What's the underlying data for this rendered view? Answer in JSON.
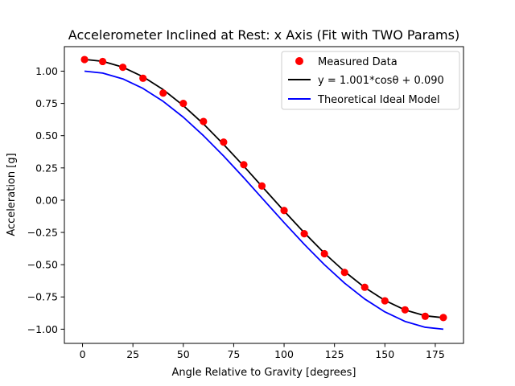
{
  "chart_data": {
    "type": "scatter",
    "title": "Accelerometer Inclined at Rest: x Axis (Fit with TWO Params)",
    "xlabel": "Angle Relative to Gravity [degrees]",
    "ylabel": "Acceleration [g]",
    "xlim": [
      -9,
      189
    ],
    "ylim": [
      -1.11,
      1.19
    ],
    "xticks": [
      0,
      25,
      50,
      75,
      100,
      125,
      150,
      175
    ],
    "xtick_labels": [
      "0",
      "25",
      "50",
      "75",
      "100",
      "125",
      "150",
      "175"
    ],
    "yticks": [
      -1.0,
      -0.75,
      -0.5,
      -0.25,
      0.0,
      0.25,
      0.5,
      0.75,
      1.0
    ],
    "ytick_labels": [
      "−1.00",
      "−0.75",
      "−0.50",
      "−0.25",
      "0.00",
      "0.25",
      "0.50",
      "0.75",
      "1.00"
    ],
    "grid": false,
    "legend_position": "top-right",
    "x": [
      1,
      10,
      20,
      30,
      40,
      50,
      60,
      70,
      80,
      89,
      100,
      110,
      120,
      130,
      140,
      150,
      160,
      170,
      179
    ],
    "series": [
      {
        "name": "Measured Data",
        "kind": "scatter",
        "color": "#ff0000",
        "values": [
          1.09,
          1.075,
          1.03,
          0.945,
          0.83,
          0.75,
          0.61,
          0.45,
          0.275,
          0.11,
          -0.08,
          -0.26,
          -0.415,
          -0.56,
          -0.675,
          -0.78,
          -0.85,
          -0.9,
          -0.91
        ]
      },
      {
        "name": "y = 1.001*cosθ + 0.090",
        "kind": "line",
        "color": "#000000",
        "values": [
          1.091,
          1.076,
          1.031,
          0.957,
          0.857,
          0.733,
          0.591,
          0.432,
          0.264,
          0.107,
          -0.084,
          -0.252,
          -0.411,
          -0.553,
          -0.677,
          -0.777,
          -0.851,
          -0.896,
          -0.911
        ]
      },
      {
        "name": "Theoretical Ideal Model",
        "kind": "line",
        "color": "#0000ff",
        "values": [
          1.0,
          0.985,
          0.94,
          0.866,
          0.766,
          0.643,
          0.5,
          0.342,
          0.174,
          0.017,
          -0.174,
          -0.342,
          -0.5,
          -0.643,
          -0.766,
          -0.866,
          -0.94,
          -0.985,
          -1.0
        ]
      }
    ]
  }
}
